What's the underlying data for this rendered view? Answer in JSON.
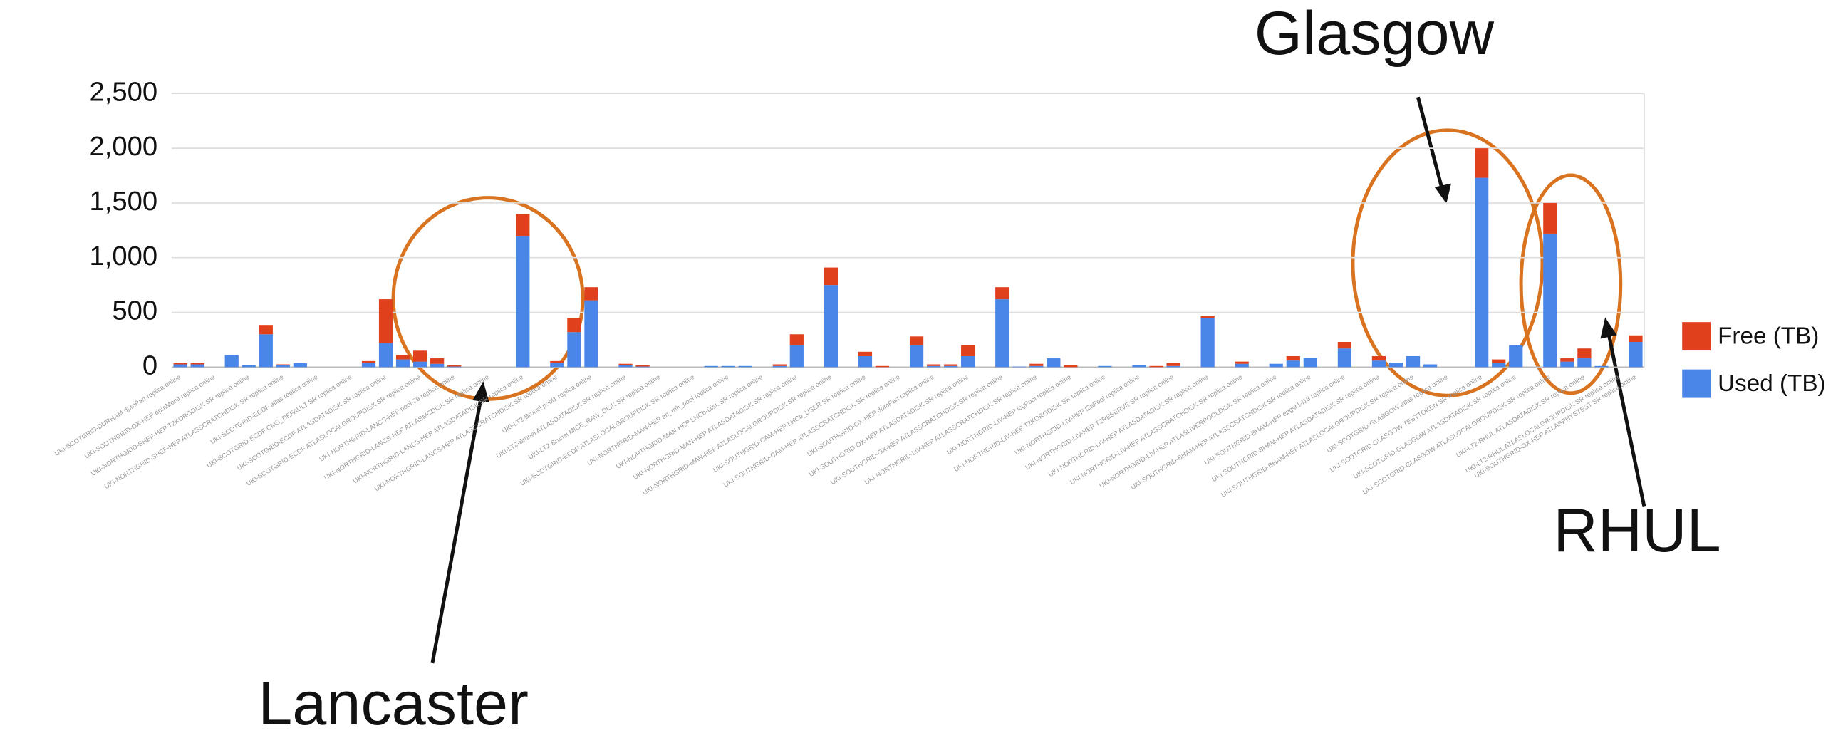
{
  "chart_data": {
    "type": "stacked_bar",
    "categories": [
      "UKI-SCOTGRID-DURHAM dpmPart replica online",
      null,
      "UKI-SOUTHGRID-OX-HEP dpmMonit replica online",
      null,
      "UKI-NORTHGRID-SHEF-HEP T2KORGDISK SR replica online",
      null,
      "UKI-NORTHGRID-SHEF-HEP ATLASSCRATCHDISK SR replica online",
      null,
      "UKI-SCOTGRID-ECDF atlas replica online",
      null,
      "UKI-SCOTGRID-ECDF CMS_DEFAULT SR replica online",
      null,
      "UKI-SCOTGRID-ECDF ATLASDATADISK SR replica online",
      null,
      "UKI-SCOTGRID-ECDF ATLASLOCALGROUPDISK SR replica online",
      null,
      "UKI-NORTHGRID-LANCS-HEP pool-29 replica online",
      null,
      "UKI-NORTHGRID-LANCS-HEP ATLASMCDISK SR replica online",
      null,
      "UKI-NORTHGRID-LANCS-HEP ATLASDATADISK SR replica online",
      null,
      "UKI-NORTHGRID-LANCS-HEP ATLASSCRATCHDISK SR replica online",
      null,
      "UKI-LT2-Brunel pool1 replica online",
      null,
      "UKI-LT2-Brunel ATLASDATADISK SR replica online",
      null,
      "UKI-LT2-Brunel MICE_RAW_DISK SR replica online",
      null,
      "UKI-SCOTGRID-ECDF ATLASLOCALGROUPDISK SR replica online",
      null,
      "UKI-NORTHGRID-MAN-HEP an_rhh_pool replica online",
      null,
      "UKI-NORTHGRID-MAN-HEP LHCb-Disk SR replica online",
      null,
      "UKI-NORTHGRID-MAN-HEP ATLASDATADISK SR replica online",
      null,
      "UKI-NORTHGRID-MAN-HEP ATLASLOCALGROUPDISK SR replica online",
      null,
      "UKI-SOUTHGRID-CAM-HEP LHCb_USER SR replica online",
      null,
      "UKI-SOUTHGRID-CAM-HEP ATLASSCRATCHDISK SR replica online",
      null,
      "UKI-SOUTHGRID-OX-HEP dpmPart replica online",
      null,
      "UKI-SOUTHGRID-OX-HEP ATLASDATADISK SR replica online",
      null,
      "UKI-SOUTHGRID-OX-HEP ATLASSCRATCHDISK SR replica online",
      null,
      "UKI-NORTHGRID-LIV-HEP ATLASSCRATCHDISK SR replica online",
      null,
      "UKI-NORTHGRID-LIV-HEP lcgPool replica online",
      null,
      "UKI-NORTHGRID-LIV-HEP T2KORGDISK SR replica online",
      null,
      "UKI-NORTHGRID-LIV-HEP t2sPool replica online",
      null,
      "UKI-NORTHGRID-LIV-HEP T2RESERVE SR replica online",
      null,
      "UKI-NORTHGRID-LIV-HEP ATLASDATADISK SR replica online",
      null,
      "UKI-NORTHGRID-LIV-HEP ATLASSCRATCHDISK SR replica online",
      null,
      "UKI-NORTHGRID-LIV-HEP ATLASLIVERPOOLDISK SR replica online",
      null,
      "UKI-SOUTHGRID-BHAM-HEP ATLASSCRATCHDISK SR replica online",
      null,
      "UKI-SOUTHGRID-BHAM-HEP epgsr1-f13 replica online",
      null,
      "UKI-SOUTHGRID-BHAM-HEP ATLASDATADISK SR replica online",
      null,
      "UKI-SOUTHGRID-BHAM-HEP ATLASLOCALGROUPDISK SR replica online",
      null,
      "UKI-SCOTGRID-GLASGOW atlas replica online",
      null,
      "UKI-SCOTGRID-GLASGOW TESTTOKEN SR replica online",
      null,
      "UKI-SCOTGRID-GLASGOW ATLASDATADISK SR replica online",
      null,
      "UKI-SCOTGRID-GLASGOW ATLASLOCALGROUPDISK SR replica online",
      null,
      "UKI-LT2-RHUL ATLASDATADISK SR replica online",
      null,
      "UKI-LT2-RHUL ATLASLOCALGROUPDISK SR replica online",
      "UKI-SOUTHGRID-OX-HEP ATLASPHYSTEST SR replica online"
    ],
    "series": [
      {
        "name": "Free (TB)",
        "color": "#e0401b",
        "values": [
          10,
          10,
          0,
          0,
          0,
          85,
          5,
          0,
          0,
          0,
          0,
          15,
          400,
          40,
          100,
          50,
          10,
          0,
          0,
          0,
          200,
          0,
          15,
          130,
          120,
          0,
          10,
          10,
          0,
          0,
          0,
          0,
          0,
          0,
          0,
          15,
          100,
          0,
          160,
          0,
          40,
          10,
          0,
          80,
          15,
          15,
          100,
          0,
          110,
          0,
          20,
          0,
          15,
          0,
          0,
          0,
          0,
          10,
          25,
          0,
          20,
          0,
          20,
          0,
          0,
          40,
          0,
          0,
          60,
          0,
          40,
          0,
          0,
          0,
          0,
          0,
          270,
          30,
          0,
          0,
          280,
          30,
          90,
          0,
          0,
          60
        ]
      },
      {
        "name": "Used (TB)",
        "color": "#4a86e8",
        "values": [
          25,
          25,
          0,
          110,
          20,
          300,
          20,
          35,
          0,
          0,
          0,
          40,
          220,
          70,
          50,
          30,
          5,
          0,
          0,
          0,
          1200,
          0,
          40,
          320,
          610,
          0,
          20,
          5,
          0,
          0,
          0,
          10,
          10,
          10,
          0,
          10,
          200,
          0,
          750,
          0,
          100,
          0,
          0,
          200,
          10,
          10,
          100,
          0,
          620,
          5,
          10,
          80,
          0,
          0,
          10,
          0,
          20,
          0,
          10,
          0,
          450,
          0,
          30,
          0,
          30,
          60,
          85,
          0,
          170,
          0,
          60,
          40,
          100,
          25,
          0,
          0,
          1730,
          40,
          200,
          0,
          1220,
          50,
          80,
          10,
          0,
          230
        ]
      }
    ],
    "ylim": [
      0,
      2500
    ],
    "yticks": [
      0,
      500,
      {
        "value": 1000,
        "label": "1,000"
      },
      {
        "value": 1500,
        "label": "1,500"
      },
      {
        "value": 2000,
        "label": "2,000"
      },
      {
        "value": 2500,
        "label": "2,500"
      }
    ],
    "grid": true,
    "legend": "right",
    "annotations": [
      "Glasgow",
      "Lancaster",
      "RHUL"
    ]
  }
}
